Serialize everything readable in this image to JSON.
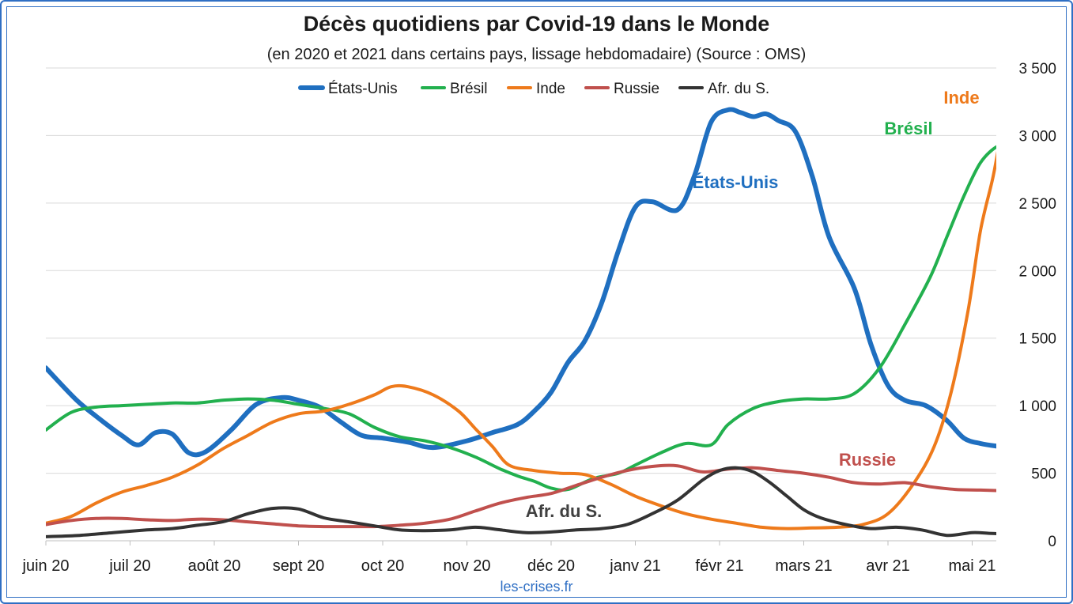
{
  "chart_data": {
    "type": "line",
    "title": "Décès quotidiens par Covid-19 dans le Monde",
    "subtitle": "(en 2020 et 2021 dans certains pays, lissage hebdomadaire) (Source : OMS)",
    "source": "les-crises.fr",
    "x_tick_labels": [
      "juin 20",
      "juil 20",
      "août 20",
      "sept 20",
      "oct 20",
      "nov 20",
      "déc 20",
      "janv 21",
      "févr 21",
      "mars 21",
      "avr 21",
      "mai 21"
    ],
    "y_tick_labels": [
      "0",
      "500",
      "1 000",
      "1 500",
      "2 000",
      "2 500",
      "3 000",
      "3 500"
    ],
    "y_axis_side": "right",
    "ylim": [
      0,
      3500
    ],
    "grid": true,
    "legend_position": "top",
    "x_unit": "months since June 2020 (0 = June 2020, 11 = May 2021)",
    "x_range": [
      0,
      11.4
    ],
    "series": [
      {
        "name": "États-Unis",
        "label": "États-Unis",
        "color": "#1f6fc0",
        "x": [
          0,
          0.35,
          0.6,
          0.9,
          1.1,
          1.3,
          1.5,
          1.7,
          1.9,
          2.2,
          2.5,
          2.8,
          3.0,
          3.25,
          3.5,
          3.75,
          4.0,
          4.3,
          4.6,
          5.0,
          5.3,
          5.6,
          5.8,
          6.0,
          6.2,
          6.4,
          6.6,
          6.8,
          7.0,
          7.2,
          7.5,
          7.7,
          7.9,
          8.1,
          8.25,
          8.4,
          8.55,
          8.7,
          8.9,
          9.1,
          9.3,
          9.6,
          9.8,
          10.0,
          10.2,
          10.45,
          10.7,
          10.9,
          11.1,
          11.3,
          11.4
        ],
        "y": [
          1280,
          1050,
          920,
          780,
          710,
          800,
          790,
          650,
          660,
          820,
          1010,
          1060,
          1040,
          990,
          880,
          780,
          760,
          730,
          690,
          740,
          800,
          860,
          960,
          1100,
          1320,
          1480,
          1760,
          2150,
          2470,
          2510,
          2450,
          2700,
          3100,
          3190,
          3170,
          3140,
          3160,
          3110,
          3030,
          2700,
          2250,
          1870,
          1450,
          1150,
          1040,
          1000,
          890,
          760,
          720,
          700,
          695
        ]
      },
      {
        "name": "Brésil",
        "label": "Brésil",
        "color": "#22b04e",
        "x": [
          0,
          0.3,
          0.6,
          0.9,
          1.2,
          1.5,
          1.8,
          2.1,
          2.4,
          2.7,
          3.0,
          3.3,
          3.6,
          3.9,
          4.2,
          4.5,
          4.8,
          5.1,
          5.4,
          5.6,
          5.8,
          6.0,
          6.2,
          6.5,
          6.8,
          7.0,
          7.3,
          7.6,
          7.9,
          8.1,
          8.4,
          8.7,
          9.0,
          9.3,
          9.6,
          9.9,
          10.2,
          10.5,
          10.7,
          10.9,
          11.1,
          11.3,
          11.4
        ],
        "y": [
          820,
          950,
          990,
          1000,
          1010,
          1020,
          1020,
          1040,
          1050,
          1040,
          1010,
          980,
          940,
          840,
          770,
          740,
          690,
          620,
          530,
          480,
          440,
          390,
          380,
          460,
          500,
          560,
          650,
          720,
          710,
          860,
          980,
          1030,
          1050,
          1050,
          1090,
          1280,
          1600,
          1950,
          2250,
          2550,
          2800,
          2920,
          2900
        ]
      },
      {
        "name": "Inde",
        "label": "Inde",
        "color": "#ee7a1b",
        "x": [
          0,
          0.3,
          0.6,
          0.9,
          1.2,
          1.5,
          1.8,
          2.1,
          2.4,
          2.7,
          3.0,
          3.3,
          3.6,
          3.9,
          4.1,
          4.3,
          4.6,
          4.9,
          5.1,
          5.3,
          5.5,
          5.8,
          6.1,
          6.4,
          6.7,
          7.0,
          7.3,
          7.6,
          7.9,
          8.2,
          8.5,
          8.8,
          9.1,
          9.4,
          9.7,
          10.0,
          10.3,
          10.55,
          10.75,
          10.95,
          11.1,
          11.25,
          11.35,
          11.4
        ],
        "y": [
          130,
          180,
          280,
          360,
          410,
          470,
          560,
          680,
          780,
          880,
          940,
          960,
          1010,
          1080,
          1140,
          1140,
          1080,
          960,
          830,
          700,
          560,
          520,
          500,
          490,
          420,
          330,
          260,
          200,
          160,
          130,
          100,
          90,
          95,
          100,
          120,
          200,
          420,
          700,
          1100,
          1700,
          2300,
          2700,
          3050,
          3230
        ]
      },
      {
        "name": "Russie",
        "label": "Russie",
        "color": "#c0504d",
        "x": [
          0,
          0.3,
          0.6,
          0.9,
          1.2,
          1.5,
          1.8,
          2.1,
          2.4,
          2.7,
          3.0,
          3.3,
          3.6,
          3.9,
          4.2,
          4.5,
          4.8,
          5.1,
          5.4,
          5.7,
          6.0,
          6.3,
          6.6,
          6.9,
          7.2,
          7.5,
          7.8,
          8.1,
          8.4,
          8.7,
          9.0,
          9.3,
          9.6,
          9.9,
          10.2,
          10.5,
          10.8,
          11.1,
          11.4
        ],
        "y": [
          120,
          150,
          165,
          165,
          155,
          150,
          160,
          155,
          140,
          125,
          110,
          105,
          105,
          105,
          115,
          130,
          160,
          220,
          280,
          320,
          350,
          410,
          470,
          520,
          550,
          555,
          510,
          530,
          540,
          520,
          500,
          470,
          430,
          420,
          430,
          400,
          380,
          375,
          370
        ]
      },
      {
        "name": "Afr. du S.",
        "label": "Afr. du S.",
        "color": "#333333",
        "x": [
          0,
          0.4,
          0.8,
          1.2,
          1.5,
          1.8,
          2.1,
          2.4,
          2.7,
          3.0,
          3.3,
          3.6,
          3.9,
          4.2,
          4.5,
          4.8,
          5.1,
          5.4,
          5.7,
          6.0,
          6.3,
          6.6,
          6.9,
          7.2,
          7.5,
          7.8,
          8.0,
          8.2,
          8.4,
          8.6,
          8.8,
          9.0,
          9.2,
          9.5,
          9.8,
          10.1,
          10.4,
          10.7,
          11.0,
          11.2,
          11.4
        ],
        "y": [
          30,
          40,
          60,
          80,
          90,
          115,
          140,
          200,
          240,
          235,
          170,
          140,
          110,
          80,
          75,
          80,
          100,
          80,
          60,
          65,
          80,
          90,
          120,
          200,
          300,
          450,
          520,
          540,
          510,
          430,
          330,
          230,
          170,
          120,
          90,
          100,
          80,
          40,
          60,
          55,
          50
        ]
      }
    ]
  }
}
